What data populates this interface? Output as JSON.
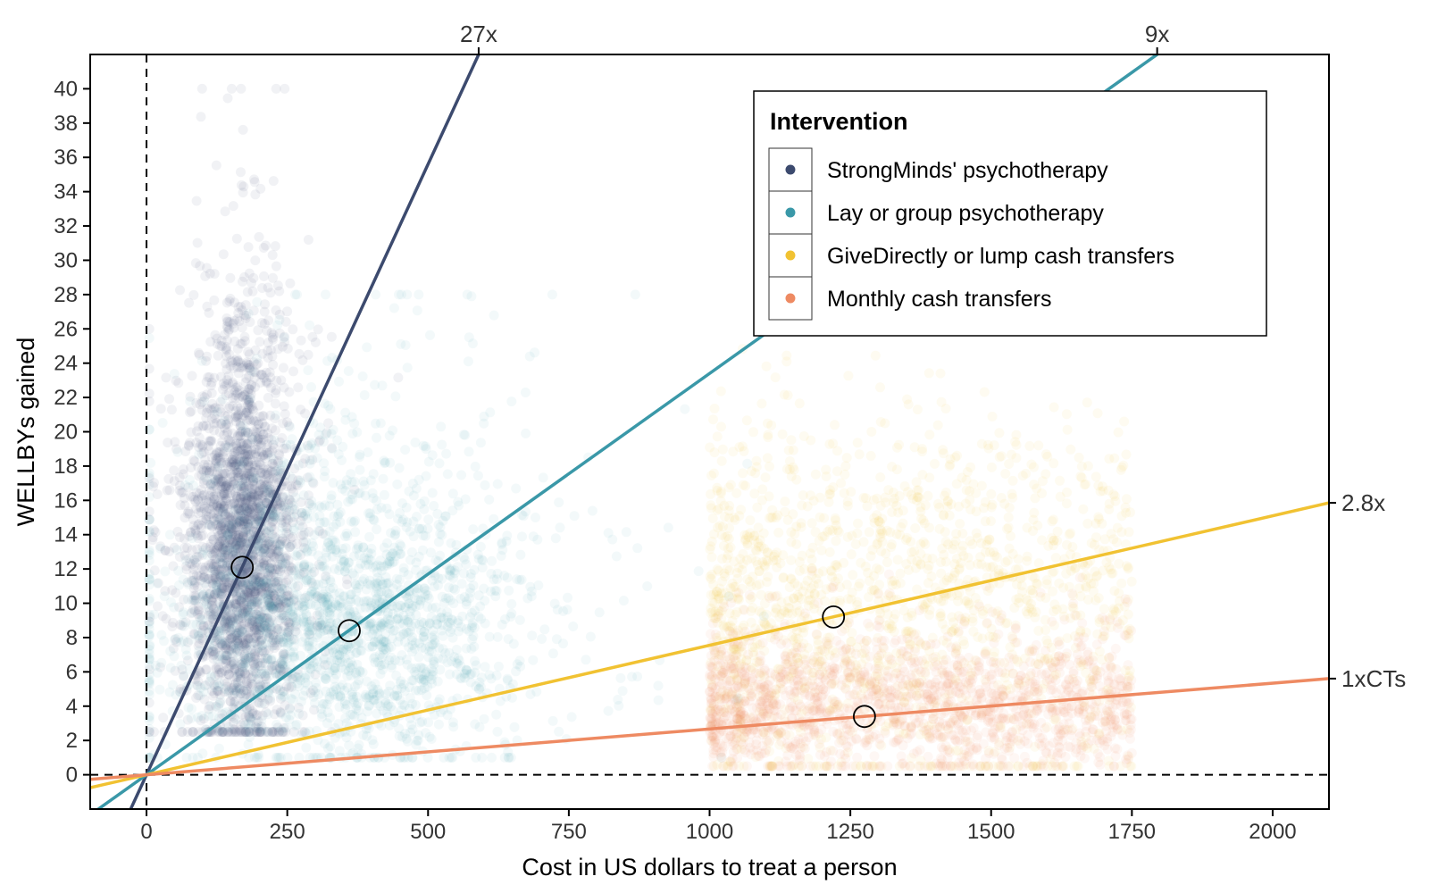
{
  "chart_data": {
    "type": "scatter",
    "xlabel": "Cost in US dollars to treat a person",
    "ylabel": "WELLBYs gained",
    "xlim": [
      -100,
      2100
    ],
    "ylim": [
      -2,
      42
    ],
    "x_ticks": [
      0,
      250,
      500,
      750,
      1000,
      1250,
      1500,
      1750,
      2000
    ],
    "x_tick_labels": [
      "0",
      "250",
      "500",
      "750",
      "1000",
      "1250",
      "1500",
      "1750",
      "2000"
    ],
    "y_ticks": [
      0,
      2,
      4,
      6,
      8,
      10,
      12,
      14,
      16,
      18,
      20,
      22,
      24,
      26,
      28,
      30,
      32,
      34,
      36,
      38,
      40
    ],
    "y_tick_labels": [
      "0",
      "2",
      "4",
      "6",
      "8",
      "10",
      "12",
      "14",
      "16",
      "18",
      "20",
      "22",
      "24",
      "26",
      "28",
      "30",
      "32",
      "34",
      "36",
      "38",
      "40"
    ],
    "grid": false,
    "legend": {
      "title": "Intervention",
      "position": "top-right",
      "entries": [
        {
          "label": "StrongMinds' psychotherapy",
          "color": "#3c4a6e"
        },
        {
          "label": "Lay or group psychotherapy",
          "color": "#3a98a8"
        },
        {
          "label": "GiveDirectly or lump cash transfers",
          "color": "#f1c232"
        },
        {
          "label": "Monthly cash transfers",
          "color": "#ee8a62"
        }
      ]
    },
    "reference_lines": [
      {
        "label": "27x",
        "slope": 0.0712,
        "color": "#3c4a6e"
      },
      {
        "label": "9x",
        "slope": 0.0234,
        "color": "#3a98a8"
      },
      {
        "label": "2.8x",
        "slope": 0.00755,
        "color": "#f1c232"
      },
      {
        "label": "1xCTs",
        "slope": 0.00267,
        "color": "#ee8a62"
      }
    ],
    "means": [
      {
        "series": "StrongMinds' psychotherapy",
        "x": 170,
        "y": 12.1
      },
      {
        "series": "Lay or group psychotherapy",
        "x": 360,
        "y": 8.4
      },
      {
        "series": "GiveDirectly or lump cash transfers",
        "x": 1220,
        "y": 9.2
      },
      {
        "series": "Monthly cash transfers",
        "x": 1275,
        "y": 3.4
      }
    ],
    "series": [
      {
        "name": "StrongMinds' psychotherapy",
        "color": "#3c4a6e",
        "x_center": 170,
        "x_spread": 45,
        "y_center": 12.1,
        "y_range": [
          2.5,
          40
        ],
        "density": "dense"
      },
      {
        "name": "Lay or group psychotherapy",
        "color": "#3a98a8",
        "x_center": 360,
        "x_spread": 150,
        "y_center": 8.4,
        "y_range": [
          1,
          28
        ],
        "density": "medium"
      },
      {
        "name": "GiveDirectly or lump cash transfers",
        "color": "#f1c232",
        "x_range": [
          1000,
          1750
        ],
        "y_center": 9.2,
        "y_range": [
          0.5,
          38
        ],
        "density": "light"
      },
      {
        "name": "Monthly cash transfers",
        "color": "#ee8a62",
        "x_range": [
          1000,
          1750
        ],
        "y_center": 3.4,
        "y_range": [
          0.5,
          14
        ],
        "density": "light"
      }
    ]
  }
}
